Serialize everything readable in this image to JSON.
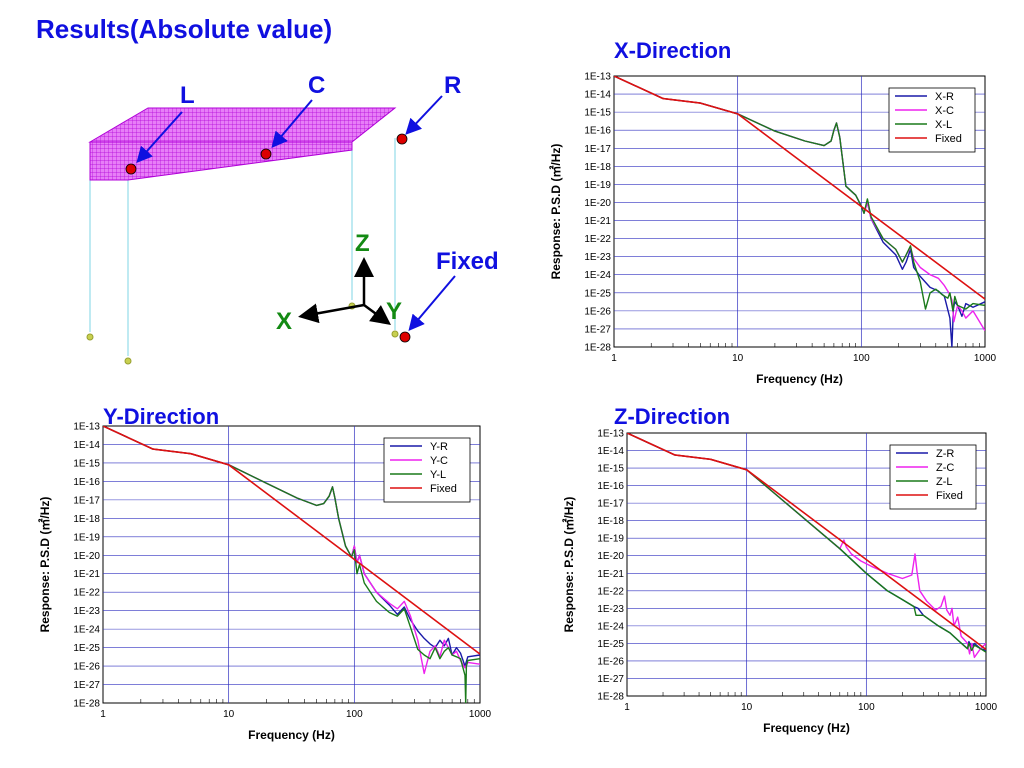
{
  "slide": {
    "title": "Results(Absolute value)"
  },
  "diagram": {
    "point_labels": [
      "L",
      "C",
      "R",
      "Fixed"
    ],
    "axis_letters": [
      "Z",
      "X",
      "Y"
    ],
    "node_color": "#dd0000",
    "mesh_color": "#cc00ee",
    "arrow_color": "#1010e0"
  },
  "colors": {
    "R": "#1a1aa8",
    "C": "#ee22ee",
    "L": "#1a7a1a",
    "Fixed": "#dd1111",
    "grid": "#3030c0"
  },
  "chart_data": [
    {
      "type": "line",
      "title": "X-Direction",
      "xlabel": "Frequency (Hz)",
      "ylabel": "Response: P.S.D (㎡/Hz)",
      "xscale": "log",
      "yscale": "log",
      "xlim": [
        1,
        1000
      ],
      "ylim": [
        1e-28,
        1e-13
      ],
      "xticks": [
        "1",
        "10",
        "100",
        "1000"
      ],
      "yticks": [
        "1E-28",
        "1E-27",
        "1E-26",
        "1E-25",
        "1E-24",
        "1E-23",
        "1E-22",
        "1E-21",
        "1E-20",
        "1E-19",
        "1E-18",
        "1E-17",
        "1E-16",
        "1E-15",
        "1E-14",
        "1E-13"
      ],
      "grid": true,
      "legend": "top-right",
      "series": [
        {
          "name": "X-R",
          "key": "R",
          "x": [
            1,
            2.5,
            5,
            10,
            20,
            35,
            50,
            57,
            60,
            63,
            67,
            75,
            90,
            100,
            105,
            112,
            120,
            150,
            190,
            215,
            230,
            250,
            265,
            300,
            360,
            420,
            470,
            520,
            540,
            555,
            570,
            600,
            650,
            700,
            800,
            1000
          ],
          "y": [
            -13,
            -14.25,
            -14.5,
            -15.1,
            -16.05,
            -16.6,
            -16.85,
            -16.6,
            -16,
            -15.6,
            -16.4,
            -19.1,
            -19.6,
            -20.2,
            -20.6,
            -20.0,
            -20.9,
            -22.2,
            -22.9,
            -23.7,
            -23.3,
            -22.6,
            -23.6,
            -24.1,
            -24.7,
            -24.9,
            -25.2,
            -26.4,
            -28,
            -25.9,
            -25.5,
            -25.7,
            -26.3,
            -25.6,
            -25.8,
            -25.5
          ]
        },
        {
          "name": "X-C",
          "key": "C",
          "x": [
            1,
            2.5,
            5,
            10,
            20,
            35,
            50,
            57,
            60,
            63,
            67,
            75,
            90,
            100,
            105,
            112,
            120,
            150,
            190,
            215,
            230,
            250,
            265,
            300,
            360,
            420,
            470,
            520,
            540,
            560,
            600,
            650,
            700,
            800,
            1000
          ],
          "y": [
            -13,
            -14.25,
            -14.5,
            -15.1,
            -16.05,
            -16.6,
            -16.85,
            -16.6,
            -16,
            -15.6,
            -16.4,
            -19.1,
            -19.6,
            -20.2,
            -20.6,
            -20.0,
            -20.9,
            -22.0,
            -22.6,
            -23.3,
            -22.9,
            -22.5,
            -23.1,
            -23.6,
            -24.0,
            -24.2,
            -24.6,
            -25.1,
            -25.4,
            -26.6,
            -25.7,
            -26.0,
            -26.4,
            -26.0,
            -27.1
          ]
        },
        {
          "name": "X-L",
          "key": "L",
          "x": [
            1,
            2.5,
            5,
            10,
            20,
            35,
            50,
            57,
            60,
            63,
            67,
            75,
            90,
            100,
            105,
            112,
            120,
            150,
            190,
            215,
            230,
            250,
            265,
            300,
            330,
            360,
            400,
            450,
            500,
            520,
            550,
            570,
            600,
            700,
            800,
            1000
          ],
          "y": [
            -13,
            -14.25,
            -14.5,
            -15.1,
            -16.05,
            -16.6,
            -16.85,
            -16.6,
            -16,
            -15.6,
            -16.4,
            -19.1,
            -19.6,
            -20.2,
            -20.6,
            -19.8,
            -20.8,
            -22.0,
            -22.6,
            -23.3,
            -22.9,
            -22.4,
            -23.3,
            -24.4,
            -25.9,
            -25.0,
            -24.8,
            -25.1,
            -25.3,
            -25.0,
            -26.0,
            -25.2,
            -25.7,
            -25.9,
            -25.6,
            -25.7
          ]
        },
        {
          "name": "Fixed",
          "key": "Fixed",
          "x": [
            1,
            2.5,
            5,
            10,
            1000
          ],
          "y": [
            -13,
            -14.25,
            -14.5,
            -15.1,
            -25.35
          ]
        }
      ]
    },
    {
      "type": "line",
      "title": "Y-Direction",
      "xlabel": "Frequency (Hz)",
      "ylabel": "Response: P.S.D (㎡/Hz)",
      "xscale": "log",
      "yscale": "log",
      "xlim": [
        1,
        1000
      ],
      "ylim": [
        1e-28,
        1e-13
      ],
      "xticks": [
        "1",
        "10",
        "100",
        "1000"
      ],
      "yticks": [
        "1E-28",
        "1E-27",
        "1E-26",
        "1E-25",
        "1E-24",
        "1E-23",
        "1E-22",
        "1E-21",
        "1E-20",
        "1E-19",
        "1E-18",
        "1E-17",
        "1E-16",
        "1E-15",
        "1E-14",
        "1E-13"
      ],
      "grid": true,
      "legend": "top-right",
      "series": [
        {
          "name": "Y-R",
          "key": "R",
          "x": [
            1,
            2.5,
            5,
            10,
            20,
            35,
            50,
            57,
            63,
            67,
            70,
            75,
            85,
            95,
            100,
            105,
            110,
            120,
            150,
            190,
            220,
            250,
            280,
            320,
            360,
            400,
            440,
            480,
            520,
            560,
            600,
            650,
            700,
            760,
            800,
            1000
          ],
          "y": [
            -13,
            -14.25,
            -14.5,
            -15.1,
            -16.1,
            -16.9,
            -17.3,
            -17.2,
            -16.8,
            -16.3,
            -16.9,
            -18.0,
            -19.5,
            -20.1,
            -19.5,
            -20.4,
            -20.0,
            -21.0,
            -22.0,
            -22.7,
            -23.2,
            -22.8,
            -23.5,
            -24.1,
            -24.5,
            -24.8,
            -25.0,
            -24.6,
            -24.9,
            -24.5,
            -25.4,
            -25.0,
            -25.3,
            -26.0,
            -25.5,
            -25.4
          ]
        },
        {
          "name": "Y-C",
          "key": "C",
          "x": [
            1,
            2.5,
            5,
            10,
            20,
            35,
            50,
            57,
            63,
            67,
            70,
            75,
            85,
            95,
            100,
            105,
            110,
            120,
            150,
            190,
            220,
            250,
            280,
            320,
            360,
            400,
            440,
            480,
            520,
            560,
            600,
            650,
            700,
            760,
            800,
            1000
          ],
          "y": [
            -13,
            -14.25,
            -14.5,
            -15.1,
            -16.1,
            -16.9,
            -17.3,
            -17.2,
            -16.8,
            -16.3,
            -16.9,
            -18.0,
            -19.5,
            -20.1,
            -19.5,
            -20.4,
            -20.0,
            -21.0,
            -22.0,
            -22.6,
            -22.9,
            -22.5,
            -23.3,
            -24.6,
            -26.4,
            -25.2,
            -24.9,
            -25.5,
            -24.6,
            -25.0,
            -25.4,
            -25.2,
            -25.7,
            -26.1,
            -25.8,
            -25.9
          ]
        },
        {
          "name": "Y-L",
          "key": "L",
          "x": [
            1,
            2.5,
            5,
            10,
            20,
            35,
            50,
            57,
            63,
            67,
            70,
            75,
            85,
            95,
            100,
            105,
            110,
            120,
            150,
            190,
            220,
            250,
            280,
            320,
            360,
            400,
            440,
            480,
            520,
            560,
            600,
            650,
            700,
            760,
            770,
            780,
            800,
            1000
          ],
          "y": [
            -13,
            -14.25,
            -14.5,
            -15.1,
            -16.1,
            -16.9,
            -17.3,
            -17.2,
            -16.8,
            -16.3,
            -16.9,
            -18.0,
            -19.5,
            -20.1,
            -19.7,
            -21.0,
            -20.5,
            -21.5,
            -22.5,
            -23.1,
            -23.3,
            -22.9,
            -23.9,
            -25.1,
            -25.4,
            -25.6,
            -25.0,
            -25.6,
            -25.2,
            -25.0,
            -25.4,
            -25.5,
            -25.6,
            -26.5,
            -28,
            -26.0,
            -25.7,
            -25.6
          ]
        },
        {
          "name": "Fixed",
          "key": "Fixed",
          "x": [
            1,
            2.5,
            5,
            10,
            1000
          ],
          "y": [
            -13,
            -14.25,
            -14.5,
            -15.1,
            -25.35
          ]
        }
      ]
    },
    {
      "type": "line",
      "title": "Z-Direction",
      "xlabel": "Frequency (Hz)",
      "ylabel": "Response: P.S.D (㎡/Hz)",
      "xscale": "log",
      "yscale": "log",
      "xlim": [
        1,
        1000
      ],
      "ylim": [
        1e-28,
        1e-13
      ],
      "xticks": [
        "1",
        "10",
        "100",
        "1000"
      ],
      "yticks": [
        "1E-28",
        "1E-27",
        "1E-26",
        "1E-25",
        "1E-24",
        "1E-23",
        "1E-22",
        "1E-21",
        "1E-20",
        "1E-19",
        "1E-18",
        "1E-17",
        "1E-16",
        "1E-15",
        "1E-14",
        "1E-13"
      ],
      "grid": true,
      "legend": "top-right",
      "series": [
        {
          "name": "Z-R",
          "key": "R",
          "x": [
            1,
            2.5,
            5,
            10,
            60,
            100,
            150,
            200,
            250,
            270,
            300,
            400,
            500,
            600,
            700,
            720,
            760,
            800,
            900,
            1000
          ],
          "y": [
            -13,
            -14.25,
            -14.5,
            -15.1,
            -19.6,
            -21.0,
            -22.0,
            -22.5,
            -22.9,
            -23.0,
            -23.4,
            -24.0,
            -24.4,
            -24.9,
            -25.3,
            -24.9,
            -25.2,
            -25.0,
            -25.3,
            -25.4
          ]
        },
        {
          "name": "Z-C",
          "key": "C",
          "x": [
            1,
            2.5,
            5,
            10,
            60,
            65,
            68,
            75,
            90,
            110,
            150,
            200,
            240,
            255,
            265,
            280,
            320,
            380,
            420,
            450,
            470,
            500,
            520,
            540,
            580,
            620,
            660,
            700,
            730,
            760,
            800,
            900,
            1000
          ],
          "y": [
            -13,
            -14.25,
            -14.5,
            -15.1,
            -19.6,
            -19.1,
            -19.5,
            -19.9,
            -20.3,
            -20.6,
            -21.0,
            -21.3,
            -21.1,
            -19.9,
            -20.9,
            -22.0,
            -22.6,
            -23.1,
            -22.9,
            -22.3,
            -23.1,
            -23.4,
            -23.0,
            -24.0,
            -23.5,
            -24.6,
            -24.8,
            -25.0,
            -25.6,
            -25.0,
            -25.8,
            -25.3,
            -25.0
          ]
        },
        {
          "name": "Z-L",
          "key": "L",
          "x": [
            1,
            2.5,
            5,
            10,
            60,
            100,
            150,
            200,
            250,
            260,
            300,
            400,
            500,
            600,
            700,
            720,
            760,
            800,
            900,
            1000
          ],
          "y": [
            -13,
            -14.25,
            -14.5,
            -15.1,
            -19.6,
            -21.0,
            -22.0,
            -22.5,
            -22.9,
            -23.4,
            -23.4,
            -24.0,
            -24.4,
            -24.9,
            -25.3,
            -25.0,
            -25.4,
            -25.1,
            -25.3,
            -25.5
          ]
        },
        {
          "name": "Fixed",
          "key": "Fixed",
          "x": [
            1,
            2.5,
            5,
            10,
            1000
          ],
          "y": [
            -13,
            -14.25,
            -14.5,
            -15.1,
            -25.35
          ]
        }
      ]
    }
  ]
}
